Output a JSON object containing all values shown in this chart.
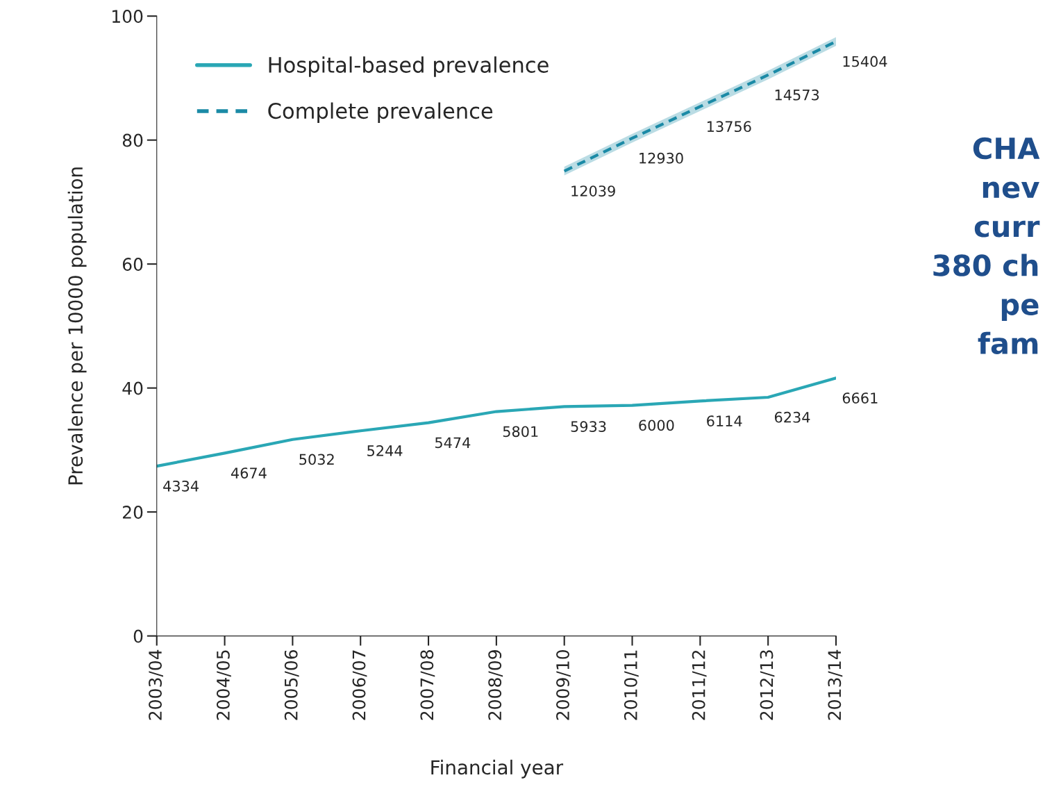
{
  "chart_data": {
    "type": "line",
    "xlabel": "Financial year",
    "ylabel": "Prevalence per 10000 population",
    "categories": [
      "2003/04",
      "2004/05",
      "2005/06",
      "2006/07",
      "2007/08",
      "2008/09",
      "2009/10",
      "2010/11",
      "2011/12",
      "2012/13",
      "2013/14"
    ],
    "series": [
      {
        "name": "Hospital-based prevalence",
        "color": "#2aa7b5",
        "line_style": "solid",
        "values": [
          27.4,
          29.5,
          31.7,
          33.1,
          34.4,
          36.2,
          37.0,
          37.2,
          37.9,
          38.5,
          41.6
        ]
      },
      {
        "name": "Complete prevalence",
        "color": "#1b8aa6",
        "line_style": "dashed",
        "values": [
          null,
          null,
          null,
          null,
          null,
          null,
          75.0,
          80.3,
          85.4,
          90.5,
          95.9
        ],
        "lower": [
          null,
          null,
          null,
          null,
          null,
          null,
          74.3,
          79.6,
          84.7,
          89.8,
          95.2
        ],
        "upper": [
          null,
          null,
          null,
          null,
          null,
          null,
          75.7,
          81.0,
          86.1,
          91.2,
          96.6
        ]
      }
    ],
    "ylim": [
      0,
      100
    ],
    "yticks": [
      0,
      20,
      40,
      60,
      80,
      100
    ],
    "grid": false,
    "legend": "top left",
    "marker": "none",
    "annotations": [
      {
        "text": "4334",
        "x": "2003/04",
        "y": 27.4
      },
      {
        "text": "4674",
        "x": "2004/05",
        "y": 29.5
      },
      {
        "text": "5032",
        "x": "2005/06",
        "y": 31.7
      },
      {
        "text": "5244",
        "x": "2006/07",
        "y": 33.1
      },
      {
        "text": "5474",
        "x": "2007/08",
        "y": 34.4
      },
      {
        "text": "5801",
        "x": "2008/09",
        "y": 36.2
      },
      {
        "text": "5933",
        "x": "2009/10",
        "y": 37.0
      },
      {
        "text": "6000",
        "x": "2010/11",
        "y": 37.2
      },
      {
        "text": "6114",
        "x": "2011/12",
        "y": 37.9
      },
      {
        "text": "6234",
        "x": "2012/13",
        "y": 38.5
      },
      {
        "text": "6661",
        "x": "2013/14",
        "y": 41.6
      },
      {
        "text": "12039",
        "x": "2009/10",
        "y": 75.0
      },
      {
        "text": "12930",
        "x": "2010/11",
        "y": 80.3
      },
      {
        "text": "13756",
        "x": "2011/12",
        "y": 85.4
      },
      {
        "text": "14573",
        "x": "2012/13",
        "y": 90.5
      },
      {
        "text": "15404",
        "x": "2013/14",
        "y": 95.9
      },
      "CHA\nnev\ncurr\n380 ch\npe\nfam"
    ]
  }
}
